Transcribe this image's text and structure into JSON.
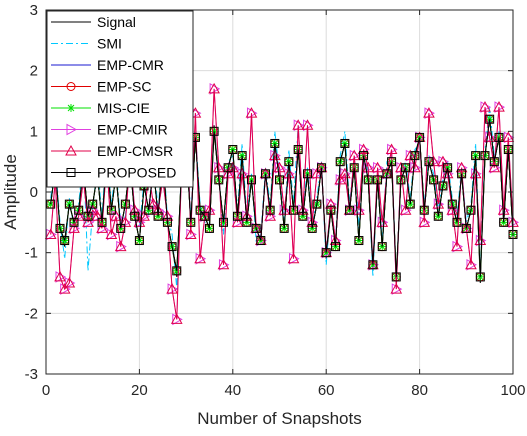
{
  "chart_data": {
    "type": "line",
    "title": "",
    "xlabel": "Number of Snapshots",
    "ylabel": "Amplitude",
    "xlim": [
      0,
      100
    ],
    "ylim": [
      -3,
      3
    ],
    "xticks": [
      0,
      20,
      40,
      60,
      80,
      100
    ],
    "yticks": [
      -3,
      -2,
      -1,
      0,
      1,
      2,
      3
    ],
    "xtick_labels": [
      "0",
      "20",
      "40",
      "60",
      "80",
      "100"
    ],
    "ytick_labels": [
      "-3",
      "-2",
      "-1",
      "0",
      "1",
      "2",
      "3"
    ],
    "grid": true,
    "legend_position": "top-left",
    "x": [
      1,
      2,
      3,
      4,
      5,
      6,
      7,
      8,
      9,
      10,
      11,
      12,
      13,
      14,
      15,
      16,
      17,
      18,
      19,
      20,
      21,
      22,
      23,
      24,
      25,
      26,
      27,
      28,
      29,
      30,
      31,
      32,
      33,
      34,
      35,
      36,
      37,
      38,
      39,
      40,
      41,
      42,
      43,
      44,
      45,
      46,
      47,
      48,
      49,
      50,
      51,
      52,
      53,
      54,
      55,
      56,
      57,
      58,
      59,
      60,
      61,
      62,
      63,
      64,
      65,
      66,
      67,
      68,
      69,
      70,
      71,
      72,
      73,
      74,
      75,
      76,
      77,
      78,
      79,
      80,
      81,
      82,
      83,
      84,
      85,
      86,
      87,
      88,
      89,
      90,
      91,
      92,
      93,
      94,
      95,
      96,
      97,
      98,
      99,
      100
    ],
    "series": [
      {
        "name": "Signal",
        "color": "#000000",
        "style": "solid",
        "marker": "none",
        "values": [
          -0.2,
          0.4,
          -0.6,
          -0.9,
          -0.2,
          -0.5,
          -0.3,
          0.4,
          -0.4,
          -0.2,
          0.3,
          -0.5,
          0.6,
          -0.3,
          0.3,
          -0.6,
          -0.2,
          0.5,
          -0.4,
          -0.8,
          0.1,
          -0.3,
          0.4,
          -0.4,
          0.6,
          -0.5,
          -0.9,
          -1.4,
          0.3,
          0.8,
          -0.5,
          0.9,
          -0.3,
          -0.4,
          -0.6,
          1.1,
          0.2,
          -0.5,
          0.4,
          0.7,
          -0.4,
          0.6,
          -0.5,
          0.2,
          -0.6,
          -0.8,
          0.3,
          -0.3,
          0.8,
          0.2,
          -0.6,
          0.5,
          -0.3,
          0.7,
          -0.4,
          0.3,
          -0.6,
          -0.2,
          0.4,
          -1.1,
          -0.3,
          -0.9,
          0.5,
          0.8,
          -0.3,
          0.4,
          -0.8,
          0.6,
          0.2,
          -1.3,
          0.2,
          -0.9,
          0.3,
          0.5,
          -1.5,
          0.2,
          0.4,
          -0.2,
          0.6,
          0.9,
          -0.3,
          0.5,
          0.2,
          -0.4,
          0.1,
          0.4,
          -0.2,
          -0.5,
          0.3,
          -0.6,
          -0.3,
          0.6,
          -1.5,
          0.6,
          1.2,
          0.5,
          0.9,
          -0.5,
          0.7,
          -0.7
        ]
      },
      {
        "name": "SMI",
        "color": "#00C8FF",
        "style": "dashdot",
        "marker": "none",
        "values": [
          -0.1,
          0.5,
          -0.5,
          -1.1,
          -0.1,
          -0.6,
          -0.2,
          0.6,
          -1.3,
          -0.3,
          0.5,
          -0.4,
          0.8,
          -0.2,
          0.4,
          -0.5,
          -0.4,
          0.7,
          -0.3,
          -0.6,
          0.2,
          -0.4,
          0.6,
          -0.3,
          0.7,
          -0.4,
          -0.7,
          -1.6,
          0.4,
          1.0,
          -0.4,
          1.0,
          -0.2,
          -0.5,
          -0.5,
          1.0,
          0.3,
          -0.7,
          0.5,
          0.6,
          -0.3,
          0.8,
          -0.4,
          0.3,
          -0.8,
          -0.7,
          0.4,
          -0.2,
          1.0,
          0.3,
          -0.5,
          0.7,
          -0.2,
          1.1,
          -0.3,
          0.4,
          -0.5,
          -0.1,
          0.5,
          -1.2,
          -0.2,
          -0.8,
          0.6,
          1.0,
          -0.2,
          0.6,
          -0.6,
          0.7,
          0.3,
          -1.4,
          0.3,
          -0.8,
          0.5,
          0.6,
          -1.4,
          0.3,
          0.5,
          -0.1,
          0.7,
          0.8,
          -0.2,
          0.6,
          0.3,
          -0.3,
          0.2,
          0.5,
          -0.1,
          -0.4,
          0.4,
          -0.5,
          -0.2,
          0.8,
          -1.3,
          0.7,
          1.4,
          0.6,
          1.0,
          -0.4,
          0.8,
          -0.6
        ]
      },
      {
        "name": "EMP-CMR",
        "color": "#1A1AD0",
        "style": "solid",
        "marker": "none",
        "values": [
          -0.2,
          0.4,
          -0.6,
          -0.8,
          -0.2,
          -0.5,
          -0.3,
          0.4,
          -0.4,
          -0.2,
          0.3,
          -0.5,
          0.6,
          -0.3,
          0.3,
          -0.6,
          -0.2,
          0.5,
          -0.4,
          -0.8,
          0.1,
          -0.3,
          0.4,
          -0.4,
          0.6,
          -0.5,
          -0.9,
          -1.3,
          0.3,
          0.8,
          -0.5,
          0.9,
          -0.3,
          -0.4,
          -0.6,
          1.0,
          0.2,
          -0.5,
          0.4,
          0.7,
          -0.4,
          0.6,
          -0.5,
          0.2,
          -0.6,
          -0.8,
          0.3,
          -0.3,
          0.8,
          0.2,
          -0.6,
          0.5,
          -0.3,
          0.7,
          -0.4,
          0.3,
          -0.6,
          -0.2,
          0.4,
          -1.0,
          -0.3,
          -0.9,
          0.5,
          0.8,
          -0.3,
          0.4,
          -0.8,
          0.6,
          0.2,
          -1.2,
          0.2,
          -0.9,
          0.3,
          0.5,
          -1.4,
          0.2,
          0.4,
          -0.2,
          0.6,
          0.9,
          -0.3,
          0.5,
          0.2,
          -0.4,
          0.1,
          0.4,
          -0.2,
          -0.5,
          0.3,
          -0.6,
          -0.3,
          0.6,
          -1.4,
          0.6,
          1.2,
          0.5,
          0.9,
          -0.5,
          0.7,
          -0.7
        ]
      },
      {
        "name": "EMP-SC",
        "color": "#E00000",
        "style": "solid",
        "marker": "circle",
        "values": [
          -0.2,
          0.4,
          -0.6,
          -0.8,
          -0.2,
          -0.5,
          -0.3,
          0.4,
          -0.4,
          -0.2,
          0.3,
          -0.5,
          0.6,
          -0.3,
          0.3,
          -0.6,
          -0.2,
          0.5,
          -0.4,
          -0.8,
          0.1,
          -0.3,
          0.4,
          -0.4,
          0.6,
          -0.5,
          -0.9,
          -1.3,
          0.3,
          0.8,
          -0.5,
          0.9,
          -0.3,
          -0.4,
          -0.6,
          1.0,
          0.2,
          -0.5,
          0.4,
          0.7,
          -0.4,
          0.6,
          -0.5,
          0.2,
          -0.6,
          -0.8,
          0.3,
          -0.3,
          0.8,
          0.2,
          -0.6,
          0.5,
          -0.3,
          0.7,
          -0.4,
          0.3,
          -0.6,
          -0.2,
          0.4,
          -1.0,
          -0.3,
          -0.9,
          0.5,
          0.8,
          -0.3,
          0.4,
          -0.8,
          0.6,
          0.2,
          -1.2,
          0.2,
          -0.9,
          0.3,
          0.5,
          -1.4,
          0.2,
          0.4,
          -0.2,
          0.6,
          0.9,
          -0.3,
          0.5,
          0.2,
          -0.4,
          0.1,
          0.4,
          -0.2,
          -0.5,
          0.3,
          -0.6,
          -0.3,
          0.6,
          -1.4,
          0.6,
          1.2,
          0.5,
          0.9,
          -0.5,
          0.7,
          -0.7
        ]
      },
      {
        "name": "MIS-CIE",
        "color": "#00E000",
        "style": "solid",
        "marker": "star",
        "values": [
          -0.2,
          0.4,
          -0.6,
          -0.8,
          -0.2,
          -0.5,
          -0.3,
          0.4,
          -0.4,
          -0.2,
          0.3,
          -0.5,
          0.6,
          -0.3,
          0.3,
          -0.6,
          -0.2,
          0.5,
          -0.4,
          -0.8,
          0.1,
          -0.3,
          0.4,
          -0.4,
          0.6,
          -0.5,
          -0.9,
          -1.3,
          0.3,
          0.8,
          -0.5,
          0.9,
          -0.3,
          -0.4,
          -0.6,
          1.0,
          0.2,
          -0.5,
          0.4,
          0.7,
          -0.4,
          0.6,
          -0.5,
          0.2,
          -0.6,
          -0.8,
          0.3,
          -0.3,
          0.8,
          0.2,
          -0.6,
          0.5,
          -0.3,
          0.7,
          -0.4,
          0.3,
          -0.6,
          -0.2,
          0.4,
          -1.0,
          -0.3,
          -0.9,
          0.5,
          0.8,
          -0.3,
          0.4,
          -0.8,
          0.6,
          0.2,
          -1.2,
          0.2,
          -0.9,
          0.3,
          0.5,
          -1.4,
          0.2,
          0.4,
          -0.2,
          0.6,
          0.9,
          -0.3,
          0.5,
          0.2,
          -0.4,
          0.1,
          0.4,
          -0.2,
          -0.5,
          0.3,
          -0.6,
          -0.3,
          0.6,
          -1.4,
          0.6,
          1.2,
          0.5,
          0.9,
          -0.5,
          0.7,
          -0.7
        ]
      },
      {
        "name": "EMP-CMIR",
        "color": "#E040E0",
        "style": "solid",
        "marker": "triangle-right",
        "values": [
          -0.7,
          0.2,
          -1.4,
          -1.6,
          -1.5,
          -0.6,
          -0.4,
          0.2,
          -0.5,
          -0.3,
          -0.4,
          -0.6,
          0.5,
          -0.7,
          -0.4,
          -0.9,
          -0.5,
          0.6,
          -0.3,
          -0.5,
          -0.4,
          0.3,
          -0.2,
          -0.3,
          0.2,
          -0.4,
          -1.6,
          -2.1,
          0.3,
          1.5,
          -0.7,
          1.3,
          -1.1,
          -0.4,
          -0.3,
          1.7,
          0.4,
          -1.2,
          0.3,
          0.4,
          -0.5,
          0.3,
          -0.4,
          1.3,
          -0.6,
          -0.8,
          0.3,
          -0.4,
          0.6,
          0.4,
          -0.3,
          0.3,
          -1.1,
          1.1,
          -0.3,
          1.1,
          -0.5,
          0.3,
          0.4,
          -1.0,
          -0.2,
          -0.8,
          0.2,
          0.3,
          -0.3,
          0.6,
          -0.3,
          0.7,
          0.4,
          -1.2,
          0.4,
          -0.5,
          0.3,
          0.7,
          -1.6,
          0.4,
          -0.3,
          0.6,
          0.4,
          0.9,
          -0.5,
          1.3,
          0.5,
          -0.2,
          0.5,
          0.3,
          -0.3,
          -0.9,
          0.4,
          -0.6,
          -1.2,
          0.3,
          -0.8,
          1.4,
          0.9,
          0.4,
          1.4,
          -0.3,
          0.9,
          -0.5
        ]
      },
      {
        "name": "EMP-CMSR",
        "color": "#E0004A",
        "style": "solid",
        "marker": "triangle-up",
        "values": [
          -0.7,
          0.2,
          -1.4,
          -1.6,
          -1.5,
          -0.6,
          -0.4,
          0.2,
          -0.5,
          -0.3,
          -0.4,
          -0.6,
          0.5,
          -0.7,
          -0.4,
          -0.9,
          -0.5,
          0.6,
          -0.3,
          -0.5,
          -0.4,
          0.3,
          -0.2,
          -0.3,
          0.2,
          -0.4,
          -1.6,
          -2.1,
          0.3,
          1.5,
          -0.7,
          1.3,
          -1.1,
          -0.4,
          -0.3,
          1.7,
          0.4,
          -1.2,
          0.3,
          0.4,
          -0.5,
          0.3,
          -0.4,
          1.3,
          -0.6,
          -0.8,
          0.3,
          -0.4,
          0.6,
          0.4,
          -0.3,
          0.3,
          -1.1,
          1.1,
          -0.3,
          1.1,
          -0.5,
          0.3,
          0.4,
          -1.0,
          -0.2,
          -0.8,
          0.2,
          0.3,
          -0.3,
          0.6,
          -0.3,
          0.7,
          0.4,
          -1.2,
          0.4,
          -0.5,
          0.3,
          0.7,
          -1.6,
          0.4,
          -0.3,
          0.6,
          0.4,
          0.9,
          -0.5,
          1.3,
          0.5,
          -0.2,
          0.5,
          0.3,
          -0.3,
          -0.9,
          0.4,
          -0.6,
          -1.2,
          0.3,
          -0.8,
          1.4,
          0.9,
          0.4,
          1.4,
          -0.3,
          0.9,
          -0.5
        ]
      },
      {
        "name": "PROPOSED",
        "color": "#000000",
        "style": "solid",
        "marker": "square",
        "values": [
          -0.2,
          0.4,
          -0.6,
          -0.8,
          -0.2,
          -0.5,
          -0.3,
          0.4,
          -0.4,
          -0.2,
          0.3,
          -0.5,
          0.6,
          -0.3,
          0.3,
          -0.6,
          -0.2,
          0.5,
          -0.4,
          -0.8,
          0.1,
          -0.3,
          0.4,
          -0.4,
          0.6,
          -0.5,
          -0.9,
          -1.3,
          0.3,
          0.8,
          -0.5,
          0.9,
          -0.3,
          -0.4,
          -0.6,
          1.0,
          0.2,
          -0.5,
          0.4,
          0.7,
          -0.4,
          0.6,
          -0.5,
          0.2,
          -0.6,
          -0.8,
          0.3,
          -0.3,
          0.8,
          0.2,
          -0.6,
          0.5,
          -0.3,
          0.7,
          -0.4,
          0.3,
          -0.6,
          -0.2,
          0.4,
          -1.0,
          -0.3,
          -0.9,
          0.5,
          0.8,
          -0.3,
          0.4,
          -0.8,
          0.6,
          0.2,
          -1.2,
          0.2,
          -0.9,
          0.3,
          0.5,
          -1.4,
          0.2,
          0.4,
          -0.2,
          0.6,
          0.9,
          -0.3,
          0.5,
          0.2,
          -0.4,
          0.1,
          0.4,
          -0.2,
          -0.5,
          0.3,
          -0.6,
          -0.3,
          0.6,
          -1.4,
          0.6,
          1.2,
          0.5,
          0.9,
          -0.5,
          0.7,
          -0.7
        ]
      }
    ]
  }
}
